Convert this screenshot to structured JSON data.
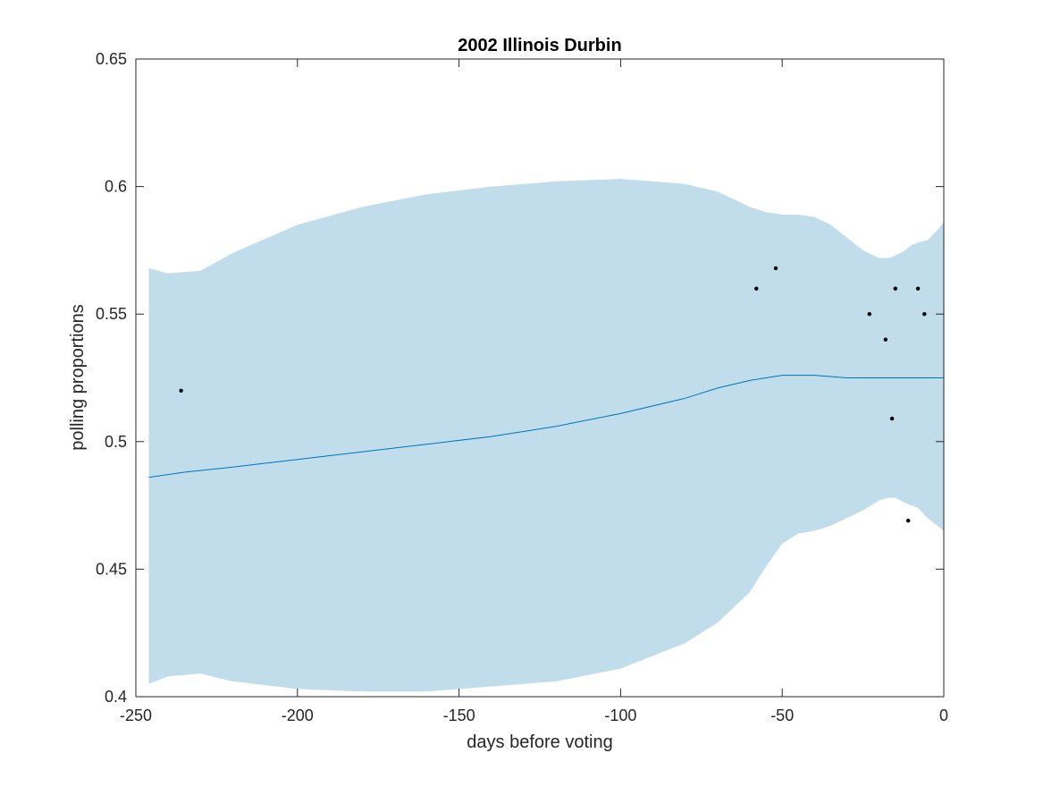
{
  "chart_data": {
    "type": "line",
    "title": "2002 Illinois Durbin",
    "xlabel": "days before voting",
    "ylabel": "polling proportions",
    "xlim": [
      -250,
      0
    ],
    "ylim": [
      0.4,
      0.65
    ],
    "xticks": [
      -250,
      -200,
      -150,
      -100,
      -50,
      0
    ],
    "xtick_labels": [
      "-250",
      "-200",
      "-150",
      "-100",
      "-50",
      "0"
    ],
    "yticks": [
      0.4,
      0.45,
      0.5,
      0.55,
      0.6,
      0.65
    ],
    "ytick_labels": [
      "0.4",
      "0.45",
      "0.5",
      "0.55",
      "0.6",
      "0.65"
    ],
    "grid": false,
    "band": {
      "x": [
        -246,
        -240,
        -230,
        -220,
        -200,
        -180,
        -160,
        -140,
        -120,
        -100,
        -80,
        -70,
        -60,
        -55,
        -50,
        -45,
        -40,
        -35,
        -30,
        -25,
        -20,
        -17,
        -15,
        -12,
        -10,
        -8,
        -5,
        -2,
        0
      ],
      "upper": [
        0.568,
        0.566,
        0.567,
        0.574,
        0.585,
        0.592,
        0.597,
        0.6,
        0.602,
        0.603,
        0.601,
        0.598,
        0.592,
        0.59,
        0.589,
        0.589,
        0.588,
        0.585,
        0.58,
        0.575,
        0.572,
        0.572,
        0.573,
        0.575,
        0.577,
        0.578,
        0.579,
        0.583,
        0.586
      ],
      "lower": [
        0.405,
        0.408,
        0.409,
        0.406,
        0.403,
        0.402,
        0.402,
        0.404,
        0.406,
        0.411,
        0.421,
        0.429,
        0.441,
        0.451,
        0.46,
        0.464,
        0.465,
        0.467,
        0.47,
        0.473,
        0.477,
        0.478,
        0.478,
        0.476,
        0.475,
        0.474,
        0.47,
        0.467,
        0.465
      ]
    },
    "series": [
      {
        "x": [
          -246,
          -235,
          -220,
          -200,
          -180,
          -160,
          -140,
          -120,
          -100,
          -80,
          -70,
          -60,
          -55,
          -50,
          -45,
          -40,
          -30,
          -20,
          -10,
          0
        ],
        "values": [
          0.486,
          0.488,
          0.49,
          0.493,
          0.496,
          0.499,
          0.502,
          0.506,
          0.511,
          0.517,
          0.521,
          0.524,
          0.525,
          0.526,
          0.526,
          0.526,
          0.525,
          0.525,
          0.525,
          0.525
        ]
      }
    ],
    "points": {
      "x": [
        -236,
        -58,
        -52,
        -23,
        -18,
        -16,
        -15,
        -11,
        -8,
        -6
      ],
      "y": [
        0.52,
        0.56,
        0.568,
        0.55,
        0.54,
        0.509,
        0.56,
        0.469,
        0.56,
        0.55
      ]
    },
    "colors": {
      "band": "#c1ddeb",
      "line": "#0072bd",
      "points": "#000000",
      "axes": "#262626"
    }
  }
}
